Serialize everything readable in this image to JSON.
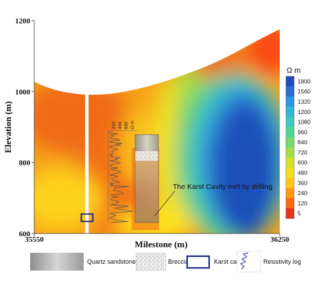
{
  "chart_data": {
    "type": "heatmap",
    "title": "",
    "xlabel": "Milestone (m)",
    "ylabel": "Elevation (m)",
    "xlim": [
      35550,
      36250
    ],
    "ylim": [
      600,
      1200
    ],
    "x_ticks": [
      "35550",
      "36250"
    ],
    "y_ticks": [
      "600",
      "800",
      "1000",
      "1200"
    ],
    "colorbar": {
      "unit": "Ω m",
      "levels": [
        "1800",
        "1560",
        "1320",
        "1200",
        "1080",
        "960",
        "840",
        "720",
        "600",
        "480",
        "360",
        "240",
        "120",
        "5"
      ],
      "colors": [
        "#1e4fb8",
        "#2a6fd0",
        "#2f95de",
        "#33b5da",
        "#3dc9c0",
        "#52d39a",
        "#78d96b",
        "#a6de45",
        "#d2e02e",
        "#f2e01e",
        "#ffc81a",
        "#ff9a12",
        "#f86a0f",
        "#e8321a"
      ]
    },
    "annotations": {
      "cavity_note": "The Karst Cavity met by drilling",
      "log_scale_labels": [
        "233",
        "466",
        "699",
        "Ω m"
      ]
    },
    "borehole_milestone": 35700,
    "cavity": {
      "milestone_range": [
        35684,
        35717
      ],
      "elevation_range": [
        634,
        655
      ]
    },
    "legend": [
      "Quartz sandstone",
      "Breccia",
      "Karst cavity",
      "Resistivity log"
    ]
  }
}
